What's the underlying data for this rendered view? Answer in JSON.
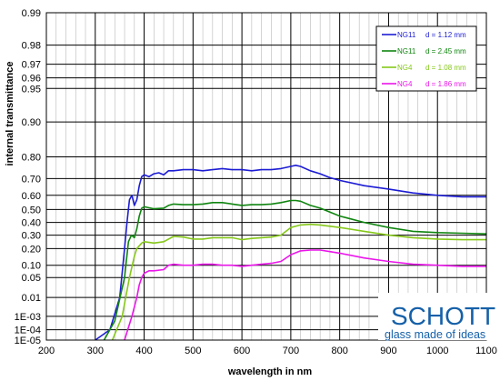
{
  "chart_data": {
    "type": "line",
    "xlabel": "wavelength in nm",
    "ylabel": "internal transmittance",
    "xlim": [
      200,
      1100
    ],
    "x_ticks": [
      200,
      300,
      400,
      500,
      600,
      700,
      800,
      900,
      1000,
      1100
    ],
    "x_minor_step": 20,
    "y_scale": "log(log(1/T))",
    "y_ticks": [
      {
        "value": 0.99,
        "label": "0.99"
      },
      {
        "value": 0.98,
        "label": "0.98"
      },
      {
        "value": 0.97,
        "label": "0.97"
      },
      {
        "value": 0.96,
        "label": "0.96"
      },
      {
        "value": 0.95,
        "label": "0.95"
      },
      {
        "value": 0.9,
        "label": "0.90"
      },
      {
        "value": 0.8,
        "label": "0.80"
      },
      {
        "value": 0.7,
        "label": "0.70"
      },
      {
        "value": 0.6,
        "label": "0.60"
      },
      {
        "value": 0.5,
        "label": "0.50"
      },
      {
        "value": 0.4,
        "label": "0.40"
      },
      {
        "value": 0.3,
        "label": "0.30"
      },
      {
        "value": 0.2,
        "label": "0.20"
      },
      {
        "value": 0.1,
        "label": "0.10"
      },
      {
        "value": 0.05,
        "label": "0.05"
      },
      {
        "value": 0.01,
        "label": "0.01"
      },
      {
        "value": 0.001,
        "label": "1E-03"
      },
      {
        "value": 0.0001,
        "label": "1E-04"
      },
      {
        "value": 1e-05,
        "label": "1E-05"
      }
    ],
    "grid": true,
    "legend_position": "top-right",
    "series": [
      {
        "name": "NG11",
        "thickness": "d = 1.12 mm",
        "color": "#1c1cd4",
        "x": [
          300,
          330,
          350,
          360,
          365,
          370,
          375,
          380,
          385,
          390,
          395,
          400,
          410,
          420,
          430,
          440,
          450,
          460,
          480,
          500,
          520,
          540,
          560,
          580,
          600,
          620,
          640,
          660,
          680,
          700,
          710,
          720,
          740,
          760,
          780,
          800,
          850,
          900,
          950,
          1000,
          1050,
          1100
        ],
        "y": [
          1e-05,
          0.0001,
          0.01,
          0.2,
          0.4,
          0.57,
          0.6,
          0.53,
          0.57,
          0.66,
          0.71,
          0.72,
          0.71,
          0.725,
          0.73,
          0.72,
          0.74,
          0.74,
          0.745,
          0.745,
          0.74,
          0.745,
          0.75,
          0.745,
          0.745,
          0.74,
          0.745,
          0.745,
          0.75,
          0.76,
          0.765,
          0.76,
          0.74,
          0.725,
          0.705,
          0.69,
          0.66,
          0.64,
          0.615,
          0.6,
          0.59,
          0.59
        ]
      },
      {
        "name": "NG11",
        "thickness": "d = 2.45 mm",
        "color": "#108510",
        "x": [
          318,
          340,
          360,
          368,
          374,
          380,
          385,
          390,
          395,
          400,
          420,
          440,
          450,
          460,
          480,
          500,
          520,
          540,
          560,
          580,
          600,
          620,
          640,
          660,
          680,
          700,
          710,
          720,
          740,
          760,
          780,
          800,
          850,
          900,
          950,
          1000,
          1050,
          1100
        ],
        "y": [
          1e-05,
          0.0005,
          0.05,
          0.25,
          0.3,
          0.28,
          0.35,
          0.45,
          0.51,
          0.52,
          0.505,
          0.51,
          0.53,
          0.54,
          0.535,
          0.535,
          0.54,
          0.55,
          0.55,
          0.54,
          0.53,
          0.535,
          0.535,
          0.54,
          0.55,
          0.565,
          0.565,
          0.56,
          0.53,
          0.51,
          0.48,
          0.45,
          0.4,
          0.36,
          0.33,
          0.32,
          0.315,
          0.31
        ]
      },
      {
        "name": "NG4",
        "thickness": "d = 1.08 mm",
        "color": "#86c81a",
        "x": [
          335,
          355,
          370,
          380,
          385,
          390,
          395,
          400,
          420,
          440,
          450,
          460,
          480,
          500,
          520,
          540,
          560,
          580,
          600,
          620,
          640,
          660,
          680,
          700,
          720,
          740,
          760,
          780,
          800,
          850,
          900,
          950,
          1000,
          1050,
          1100
        ],
        "y": [
          1e-05,
          0.001,
          0.05,
          0.15,
          0.2,
          0.22,
          0.24,
          0.25,
          0.24,
          0.25,
          0.27,
          0.29,
          0.285,
          0.27,
          0.27,
          0.28,
          0.28,
          0.28,
          0.265,
          0.275,
          0.28,
          0.285,
          0.3,
          0.36,
          0.38,
          0.385,
          0.38,
          0.37,
          0.36,
          0.33,
          0.3,
          0.28,
          0.27,
          0.265,
          0.265
        ]
      },
      {
        "name": "NG4",
        "thickness": "d = 1.86 mm",
        "color": "#ea16ea",
        "x": [
          360,
          375,
          385,
          390,
          395,
          400,
          410,
          420,
          440,
          450,
          460,
          480,
          500,
          520,
          540,
          560,
          580,
          600,
          620,
          640,
          660,
          680,
          700,
          720,
          740,
          760,
          780,
          800,
          850,
          900,
          950,
          1000,
          1050,
          1100
        ],
        "y": [
          1e-05,
          0.001,
          0.01,
          0.03,
          0.05,
          0.065,
          0.075,
          0.075,
          0.08,
          0.1,
          0.105,
          0.1,
          0.1,
          0.105,
          0.105,
          0.1,
          0.1,
          0.095,
          0.1,
          0.105,
          0.11,
          0.12,
          0.16,
          0.185,
          0.19,
          0.19,
          0.18,
          0.17,
          0.14,
          0.12,
          0.105,
          0.1,
          0.095,
          0.095
        ]
      }
    ]
  },
  "logo": {
    "brand": "SCHOTT",
    "tagline": "glass made of ideas",
    "color": "#1560a8"
  }
}
